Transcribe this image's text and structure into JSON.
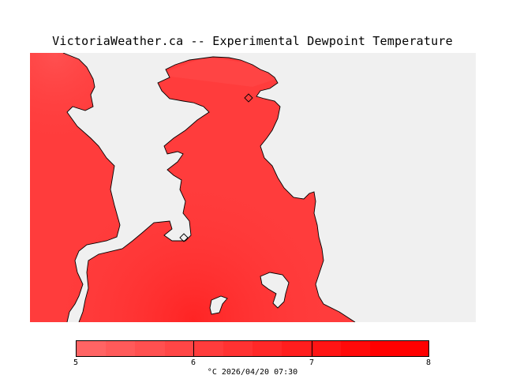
{
  "title": "VictoriaWeather.ca -- Experimental Dewpoint Temperature",
  "colors": {
    "water": "#f0f0f0",
    "coastline": "#000000",
    "field_low": "#ff5050",
    "field_mid": "#ff3c3c",
    "field_high": "#ff2828"
  },
  "legend": {
    "ticks": [
      "5",
      "6",
      "7",
      "8"
    ],
    "colors": [
      "#ff6464",
      "#ff5a5a",
      "#ff5050",
      "#ff4646",
      "#ff3c3c",
      "#ff3232",
      "#ff2828",
      "#ff1e1e",
      "#ff1414",
      "#ff0a0a",
      "#ff0000",
      "#ff0000"
    ],
    "caption": "°C  2026/04/20 07:30"
  }
}
